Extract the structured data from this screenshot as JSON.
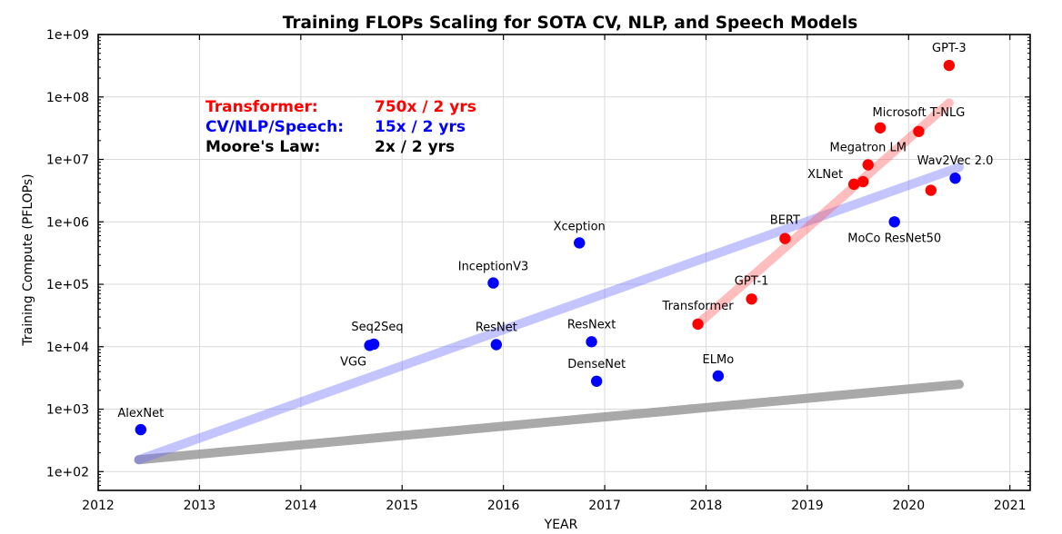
{
  "chart_data": {
    "type": "scatter",
    "title": "Training FLOPs Scaling for SOTA CV, NLP, and Speech Models",
    "xlabel": "YEAR",
    "ylabel": "Training Compute (PFLOPs)",
    "xlim": [
      2012,
      2021.2
    ],
    "ylim": [
      50,
      1000000000
    ],
    "yscale": "log",
    "grid": true,
    "x_ticks": [
      "2012",
      "2013",
      "2014",
      "2015",
      "2016",
      "2017",
      "2018",
      "2019",
      "2020",
      "2021"
    ],
    "x_tick_values": [
      2012,
      2013,
      2014,
      2015,
      2016,
      2017,
      2018,
      2019,
      2020,
      2021
    ],
    "y_ticks": [
      "1e+02",
      "1e+03",
      "1e+04",
      "1e+05",
      "1e+06",
      "1e+07",
      "1e+08",
      "1e+09"
    ],
    "y_tick_values": [
      100,
      1000,
      10000,
      100000,
      1000000,
      10000000,
      100000000,
      1000000000
    ],
    "legend": [
      {
        "name": "Transformer:",
        "rate": "750x / 2 yrs",
        "color": "#ff0000"
      },
      {
        "name": "CV/NLP/Speech:",
        "rate": "15x / 2 yrs",
        "color": "#0000ff"
      },
      {
        "name": "Moore's Law:",
        "rate": "2x / 2 yrs",
        "color": "#000000"
      }
    ],
    "series": [
      {
        "color": "#0000ff",
        "points": [
          {
            "label": "AlexNet",
            "x": 2012.42,
            "y": 470,
            "lx": 0,
            "ly": -14,
            "anchor": "middle"
          },
          {
            "label": "Seq2Seq",
            "x": 2014.72,
            "y": 11000,
            "lx": 4,
            "ly": -15,
            "anchor": "middle"
          },
          {
            "label": "VGG",
            "x": 2014.68,
            "y": 10500,
            "lx": -18,
            "ly": 22,
            "anchor": "middle"
          },
          {
            "label": "InceptionV3",
            "x": 2015.9,
            "y": 105000,
            "lx": 0,
            "ly": -14,
            "anchor": "middle"
          },
          {
            "label": "ResNet",
            "x": 2015.93,
            "y": 10800,
            "lx": 0,
            "ly": -15,
            "anchor": "middle"
          },
          {
            "label": "Xception",
            "x": 2016.75,
            "y": 460000,
            "lx": 0,
            "ly": -14,
            "anchor": "middle"
          },
          {
            "label": "ResNext",
            "x": 2016.87,
            "y": 12000,
            "lx": 0,
            "ly": -15,
            "anchor": "middle"
          },
          {
            "label": "DenseNet",
            "x": 2016.92,
            "y": 2800,
            "lx": 0,
            "ly": -15,
            "anchor": "middle"
          },
          {
            "label": "ELMo",
            "x": 2018.12,
            "y": 3400,
            "lx": 0,
            "ly": -14,
            "anchor": "middle"
          },
          {
            "label": "MoCo ResNet50",
            "x": 2019.86,
            "y": 1000000,
            "lx": 0,
            "ly": 22,
            "anchor": "middle"
          },
          {
            "label": "Wav2Vec 2.0",
            "x": 2020.46,
            "y": 5000000,
            "lx": 0,
            "ly": -15,
            "anchor": "middle"
          }
        ]
      },
      {
        "color": "#ff0000",
        "points": [
          {
            "label": "Transformer",
            "x": 2017.92,
            "y": 23000,
            "lx": 0,
            "ly": -16,
            "anchor": "middle"
          },
          {
            "label": "GPT-1",
            "x": 2018.45,
            "y": 58000,
            "lx": 0,
            "ly": -16,
            "anchor": "middle"
          },
          {
            "label": "BERT",
            "x": 2018.78,
            "y": 540000,
            "lx": 0,
            "ly": -16,
            "anchor": "middle"
          },
          {
            "label": "XLNet",
            "x": 2019.46,
            "y": 4000000,
            "lx": -12,
            "ly": -7,
            "anchor": "end"
          },
          {
            "label": "",
            "x": 2019.55,
            "y": 4400000,
            "lx": 0,
            "ly": 0,
            "anchor": "middle"
          },
          {
            "label": "Megatron LM",
            "x": 2019.6,
            "y": 8200000,
            "lx": 0,
            "ly": -15,
            "anchor": "middle"
          },
          {
            "label": "",
            "x": 2019.72,
            "y": 32000000,
            "lx": 0,
            "ly": 0,
            "anchor": "middle"
          },
          {
            "label": "Microsoft T-NLG",
            "x": 2020.1,
            "y": 28000000,
            "lx": 0,
            "ly": -17,
            "anchor": "middle"
          },
          {
            "label": "",
            "x": 2020.22,
            "y": 3200000,
            "lx": 0,
            "ly": 0,
            "anchor": "middle"
          },
          {
            "label": "GPT-3",
            "x": 2020.4,
            "y": 320000000,
            "lx": 0,
            "ly": -15,
            "anchor": "middle"
          }
        ]
      }
    ],
    "trend_lines": [
      {
        "color": "#9a9a9a",
        "opacity": 0.85,
        "x": [
          2012.4,
          2020.5
        ],
        "y": [
          155,
          2500
        ]
      },
      {
        "color": "#6b6bff",
        "opacity": 0.4,
        "x": [
          2012.4,
          2020.5
        ],
        "y": [
          155,
          7500000
        ]
      },
      {
        "color": "#ff5a5a",
        "opacity": 0.4,
        "x": [
          2017.92,
          2020.4
        ],
        "y": [
          23000,
          80000000
        ]
      }
    ]
  }
}
